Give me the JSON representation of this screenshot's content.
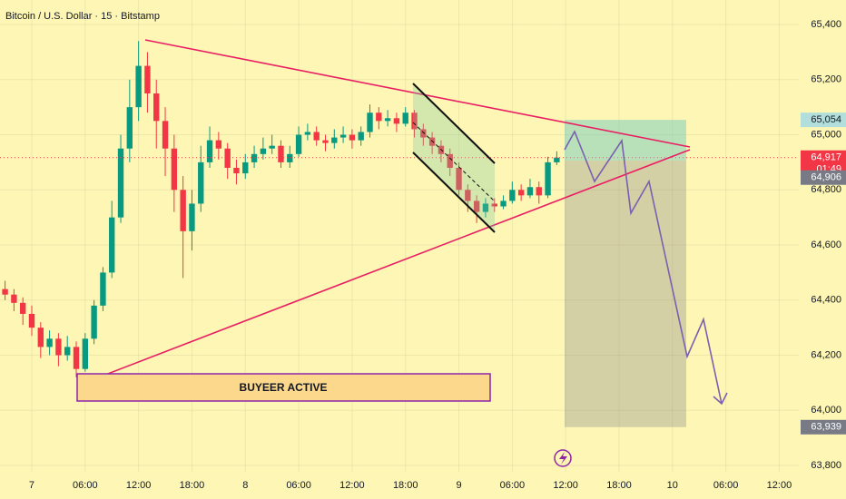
{
  "chart_data": {
    "type": "candlestick",
    "title": "Bitcoin / U.S. Dollar · 15 · Bitstamp",
    "annotation": "BUYEER ACTIVE",
    "countdown": "01:49",
    "up_color": "#089981",
    "down_color": "#f23645",
    "grid": true,
    "xlim": [
      -3.57,
      86.2
    ],
    "ylim": [
      63777,
      65489
    ],
    "xticks": [
      {
        "value": 0,
        "label": "7"
      },
      {
        "value": 6,
        "label": "06:00"
      },
      {
        "value": 12,
        "label": "12:00"
      },
      {
        "value": 18,
        "label": "18:00"
      },
      {
        "value": 24,
        "label": "8"
      },
      {
        "value": 30,
        "label": "06:00"
      },
      {
        "value": 36,
        "label": "12:00"
      },
      {
        "value": 42,
        "label": "18:00"
      },
      {
        "value": 48,
        "label": "9"
      },
      {
        "value": 54,
        "label": "06:00"
      },
      {
        "value": 60,
        "label": "12:00"
      },
      {
        "value": 66,
        "label": "18:00"
      },
      {
        "value": 72,
        "label": "10"
      },
      {
        "value": 78,
        "label": "06:00"
      },
      {
        "value": 84,
        "label": "12:00"
      }
    ],
    "yticks": [
      {
        "value": 63800,
        "label": "63,800"
      },
      {
        "value": 64000,
        "label": "64,000"
      },
      {
        "value": 64200,
        "label": "64,200"
      },
      {
        "value": 64400,
        "label": "64,400"
      },
      {
        "value": 64600,
        "label": "64,600"
      },
      {
        "value": 64800,
        "label": "64,800"
      },
      {
        "value": 65000,
        "label": "65,000"
      },
      {
        "value": 65200,
        "label": "65,200"
      },
      {
        "value": 65400,
        "label": "65,400"
      }
    ],
    "price_labels": [
      {
        "value": 65054,
        "label": "65,054",
        "color": "#b2dfdb"
      },
      {
        "value": 64917,
        "label": "64,917",
        "color": "#f23645"
      },
      {
        "value": 64906,
        "label": "64,906",
        "color": "#787b86"
      },
      {
        "value": 63939,
        "label": "63,939",
        "color": "#787b86"
      }
    ],
    "x": [
      -3,
      -2,
      -1,
      0,
      1,
      2,
      3,
      4,
      5,
      6,
      7,
      8,
      9,
      10,
      11,
      12,
      13,
      14,
      15,
      16,
      17,
      18,
      19,
      20,
      21,
      22,
      23,
      24,
      25,
      26,
      27,
      28,
      29,
      30,
      31,
      32,
      33,
      34,
      35,
      36,
      37,
      38,
      39,
      40,
      41,
      42,
      43,
      44,
      45,
      46,
      47,
      48,
      49,
      50,
      51,
      52,
      53,
      54,
      55,
      56,
      57,
      58,
      59
    ],
    "open": [
      64440,
      64420,
      64390,
      64350,
      64300,
      64230,
      64260,
      64200,
      64230,
      64150,
      64260,
      64380,
      64500,
      64700,
      64950,
      65100,
      65250,
      65150,
      65050,
      64950,
      64800,
      64650,
      64750,
      64900,
      64980,
      64950,
      64880,
      64860,
      64900,
      64930,
      64950,
      64960,
      64900,
      64930,
      65000,
      65010,
      64980,
      64970,
      64990,
      65000,
      64980,
      65010,
      65080,
      65050,
      65060,
      65040,
      65080,
      65020,
      64990,
      64960,
      64930,
      64880,
      64800,
      64760,
      64720,
      64750,
      64740,
      64760,
      64800,
      64780,
      64810,
      64780,
      64900
    ],
    "high": [
      64470,
      64440,
      64410,
      64380,
      64320,
      64290,
      64280,
      64270,
      64250,
      64280,
      64400,
      64520,
      64760,
      65000,
      65200,
      65340,
      65300,
      65200,
      65100,
      65000,
      64850,
      64800,
      64960,
      65030,
      65010,
      64970,
      64910,
      64930,
      64960,
      64990,
      65000,
      64980,
      64960,
      65030,
      65040,
      65030,
      65000,
      65020,
      65030,
      65020,
      65030,
      65110,
      65100,
      65090,
      65080,
      65100,
      65090,
      65040,
      65010,
      64980,
      64950,
      64900,
      64820,
      64780,
      64770,
      64770,
      64780,
      64830,
      64820,
      64840,
      64830,
      64920,
      64940
    ],
    "low": [
      64400,
      64360,
      64310,
      64270,
      64190,
      64200,
      64160,
      64180,
      64120,
      64140,
      64240,
      64360,
      64480,
      64680,
      64900,
      65050,
      65080,
      64950,
      64850,
      64720,
      64480,
      64580,
      64720,
      64880,
      64910,
      64840,
      64820,
      64840,
      64880,
      64910,
      64930,
      64880,
      64880,
      64920,
      64980,
      64960,
      64940,
      64950,
      64970,
      64950,
      64960,
      64990,
      65020,
      65030,
      65010,
      65030,
      64990,
      64960,
      64930,
      64900,
      64850,
      64780,
      64720,
      64680,
      64700,
      64720,
      64730,
      64750,
      64760,
      64770,
      64750,
      64770,
      64890
    ],
    "close": [
      64420,
      64390,
      64350,
      64300,
      64230,
      64260,
      64200,
      64230,
      64150,
      64260,
      64380,
      64500,
      64700,
      64950,
      65100,
      65250,
      65150,
      65050,
      64950,
      64800,
      64650,
      64750,
      64900,
      64980,
      64950,
      64880,
      64860,
      64900,
      64930,
      64950,
      64960,
      64900,
      64930,
      65000,
      65010,
      64980,
      64970,
      64990,
      65000,
      64980,
      65010,
      65080,
      65050,
      65060,
      65040,
      65080,
      65020,
      64990,
      64960,
      64930,
      64880,
      64800,
      64760,
      64720,
      64750,
      64740,
      64760,
      64800,
      64780,
      64810,
      64780,
      64900,
      64917
    ]
  }
}
